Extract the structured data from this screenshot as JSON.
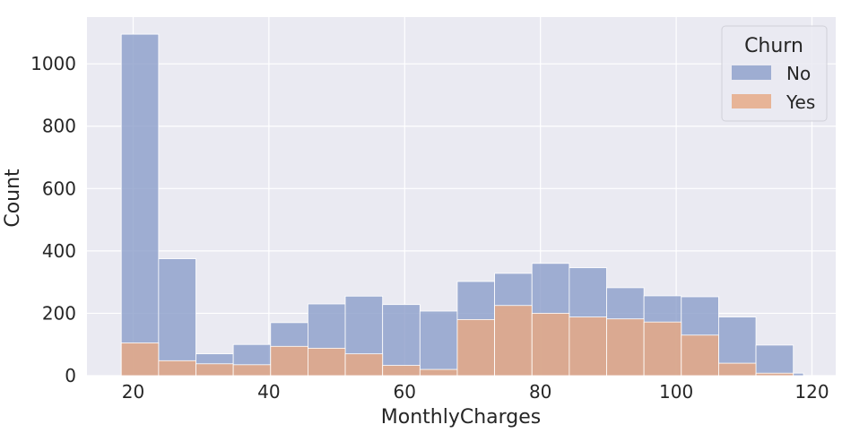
{
  "chart_data": {
    "type": "bar",
    "title": "",
    "xlabel": "MonthlyCharges",
    "ylabel": "Count",
    "xlim": [
      13.2,
      123.5
    ],
    "ylim": [
      0,
      1150
    ],
    "xticks": [
      20,
      40,
      60,
      80,
      100,
      120
    ],
    "yticks": [
      0,
      200,
      400,
      600,
      800,
      1000
    ],
    "grid": true,
    "bin_edges": [
      18.25,
      23.75,
      29.25,
      34.75,
      40.25,
      45.75,
      51.25,
      56.75,
      62.25,
      67.75,
      73.25,
      78.75,
      84.25,
      89.75,
      95.25,
      100.75,
      106.25,
      111.75,
      117.25,
      118.75
    ],
    "legend": {
      "title": "Churn",
      "placement": "top-right",
      "entries": [
        "No",
        "Yes"
      ]
    },
    "series": [
      {
        "name": "No",
        "color": "#8da0cb",
        "values": [
          1095,
          375,
          70,
          100,
          170,
          230,
          255,
          228,
          207,
          302,
          328,
          360,
          346,
          282,
          256,
          253,
          188,
          98,
          8
        ]
      },
      {
        "name": "Yes",
        "color": "#e6a883",
        "values": [
          105,
          48,
          38,
          35,
          94,
          88,
          70,
          33,
          20,
          180,
          225,
          200,
          188,
          182,
          172,
          130,
          40,
          8,
          0
        ]
      }
    ]
  }
}
